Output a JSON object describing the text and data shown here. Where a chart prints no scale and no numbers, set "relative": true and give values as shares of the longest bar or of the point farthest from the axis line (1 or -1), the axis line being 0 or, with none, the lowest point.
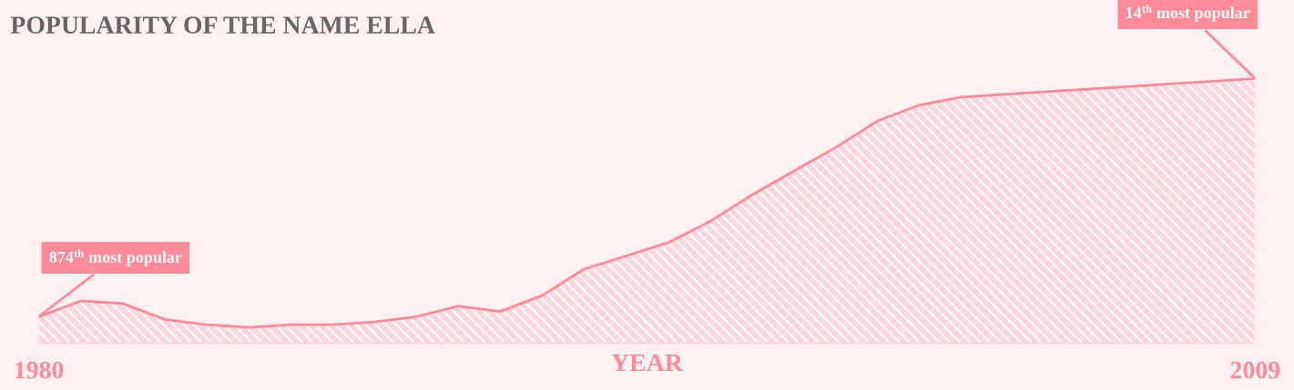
{
  "chart_data": {
    "type": "area",
    "title": "POPULARITY OF THE NAME ELLA",
    "xlabel": "YEAR",
    "relative": true,
    "x": [
      1980,
      1981,
      1982,
      1983,
      1984,
      1985,
      1986,
      1987,
      1988,
      1989,
      1990,
      1991,
      1992,
      1993,
      1994,
      1995,
      1996,
      1997,
      1998,
      1999,
      2000,
      2001,
      2002,
      2003,
      2004,
      2005,
      2006,
      2007,
      2008,
      2009
    ],
    "series": [
      {
        "color": "#ff8a9a",
        "values": [
          0.1,
          0.16,
          0.15,
          0.09,
          0.07,
          0.06,
          0.07,
          0.07,
          0.08,
          0.1,
          0.14,
          0.12,
          0.18,
          0.28,
          0.33,
          0.38,
          0.46,
          0.56,
          0.65,
          0.74,
          0.84,
          0.9,
          0.93,
          0.94,
          0.95,
          0.96,
          0.97,
          0.98,
          0.99,
          1
        ]
      }
    ],
    "xlim": [
      1980,
      2009
    ],
    "xticks": [
      1980,
      2009
    ],
    "annotations": [
      {
        "text": "874$^{th}$ most popular",
        "x": 1980,
        "y": 0.1
      },
      {
        "text": "14$^{th}$ most popular",
        "x": 2009,
        "y": 1
      }
    ],
    "grid": false,
    "legend": false
  }
}
